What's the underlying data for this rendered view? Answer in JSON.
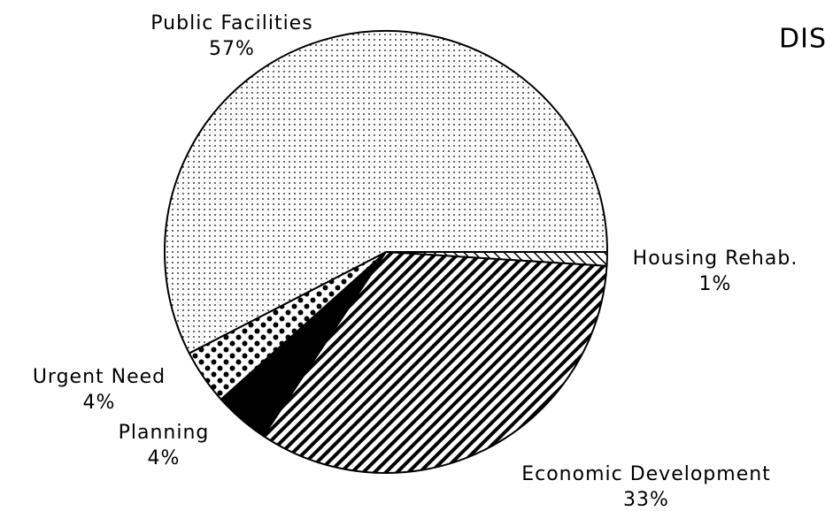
{
  "chart_data": {
    "type": "pie",
    "title": "DIS",
    "categories": [
      "Housing Rehab.",
      "Economic Development",
      "Planning",
      "Urgent Need",
      "Public Facilities"
    ],
    "values": [
      1,
      33,
      4,
      4,
      57
    ],
    "value_labels": [
      "1%",
      "33%",
      "4%",
      "4%",
      "57%"
    ],
    "patterns": [
      "hatch-up",
      "hatch-down",
      "solid",
      "dots-large",
      "dots-small"
    ]
  }
}
